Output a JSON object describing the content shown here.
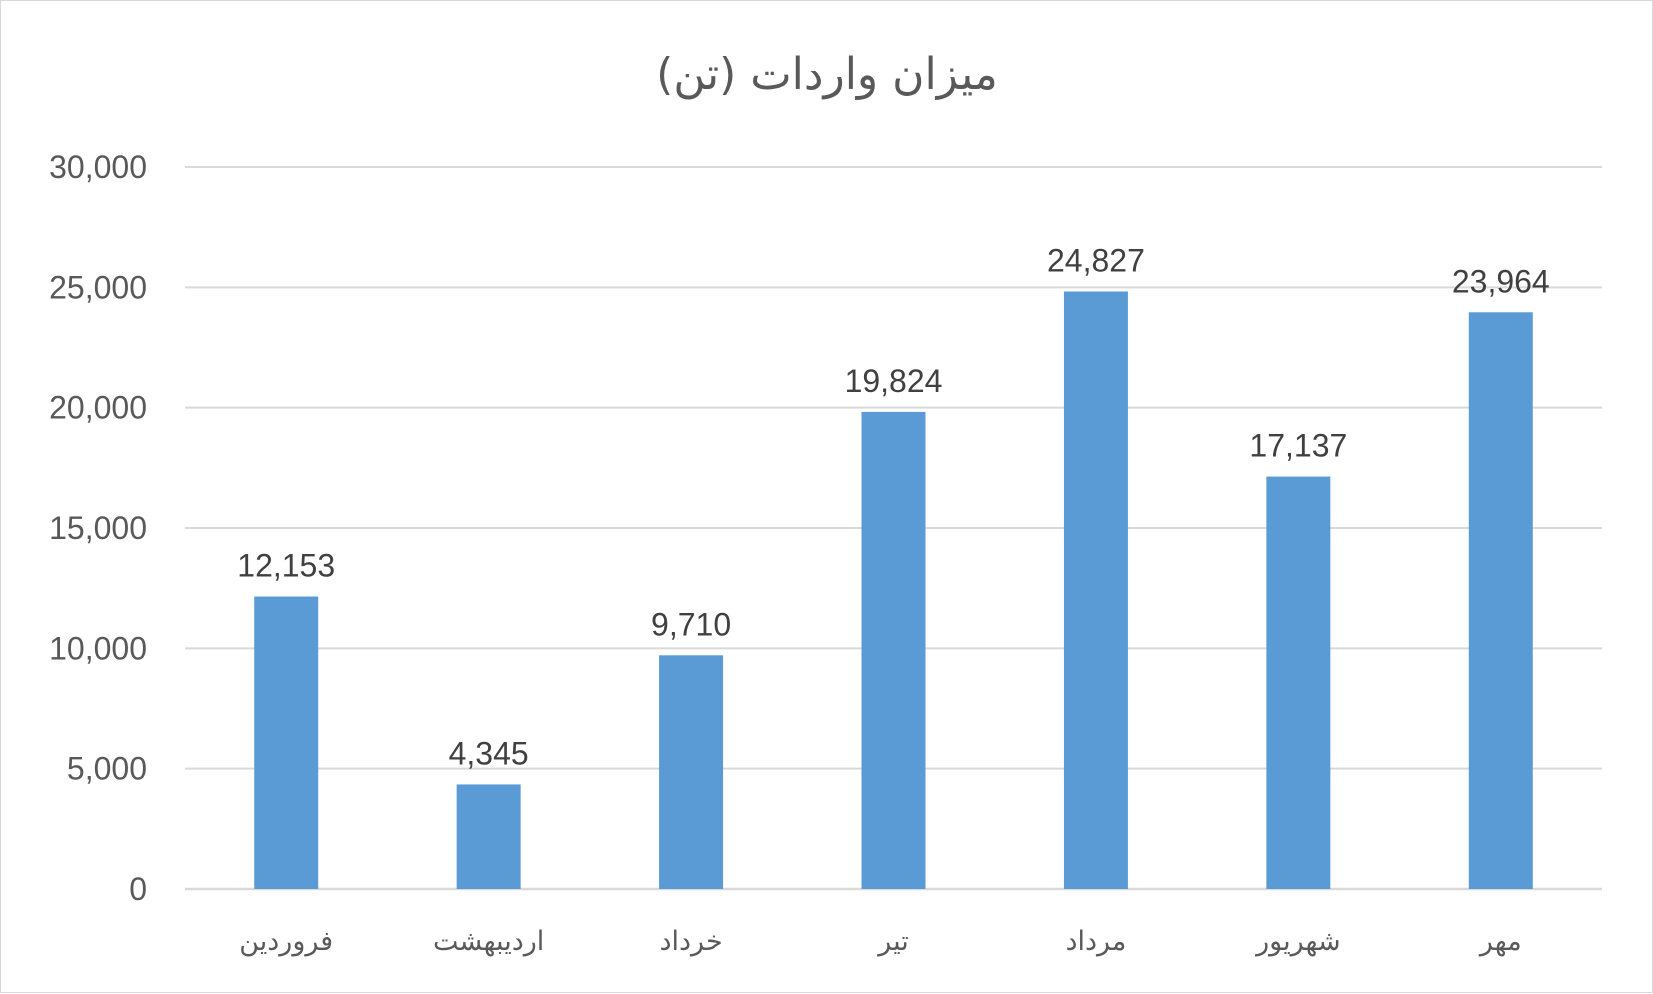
{
  "chart_data": {
    "type": "bar",
    "title": "میزان واردات (تن)",
    "xlabel": "",
    "ylabel": "",
    "categories": [
      "فروردین",
      "اردیبهشت",
      "خرداد",
      "تیر",
      "مرداد",
      "شهریور",
      "مهر"
    ],
    "values": [
      12153,
      4345,
      9710,
      19824,
      24827,
      17137,
      23964
    ],
    "data_labels": [
      "12,153",
      "4,345",
      "9,710",
      "19,824",
      "24,827",
      "17,137",
      "23,964"
    ],
    "yticks": [
      0,
      5000,
      10000,
      15000,
      20000,
      25000,
      30000
    ],
    "ytick_labels": [
      "0",
      "5,000",
      "10,000",
      "15,000",
      "20,000",
      "25,000",
      "30,000"
    ],
    "ylim": [
      0,
      30000
    ],
    "grid": true,
    "legend": "none",
    "bar_color": "#5b9bd5"
  }
}
